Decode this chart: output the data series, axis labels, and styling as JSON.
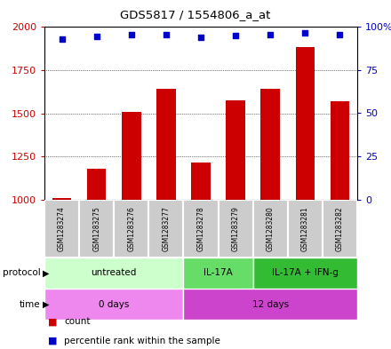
{
  "title": "GDS5817 / 1554806_a_at",
  "samples": [
    "GSM1283274",
    "GSM1283275",
    "GSM1283276",
    "GSM1283277",
    "GSM1283278",
    "GSM1283279",
    "GSM1283280",
    "GSM1283281",
    "GSM1283282"
  ],
  "counts": [
    1010,
    1180,
    1510,
    1640,
    1215,
    1575,
    1640,
    1880,
    1570
  ],
  "percentiles": [
    93,
    94.5,
    95.5,
    95.5,
    94,
    95,
    95.5,
    96.5,
    95.5
  ],
  "ylim_left": [
    1000,
    2000
  ],
  "ylim_right": [
    0,
    100
  ],
  "yticks_left": [
    1000,
    1250,
    1500,
    1750,
    2000
  ],
  "yticks_right": [
    0,
    25,
    50,
    75,
    100
  ],
  "bar_color": "#cc0000",
  "dot_color": "#0000cc",
  "bg_color": "#ffffff",
  "protocol_groups": [
    {
      "label": "untreated",
      "start": 0,
      "end": 4,
      "color": "#ccffcc"
    },
    {
      "label": "IL-17A",
      "start": 4,
      "end": 6,
      "color": "#66dd66"
    },
    {
      "label": "IL-17A + IFN-g",
      "start": 6,
      "end": 9,
      "color": "#33bb33"
    }
  ],
  "time_groups": [
    {
      "label": "0 days",
      "start": 0,
      "end": 4,
      "color": "#ee88ee"
    },
    {
      "label": "12 days",
      "start": 4,
      "end": 9,
      "color": "#cc44cc"
    }
  ],
  "tick_color_left": "#cc0000",
  "tick_color_right": "#0000cc",
  "sample_box_color": "#cccccc",
  "sample_box_edge": "#ffffff"
}
